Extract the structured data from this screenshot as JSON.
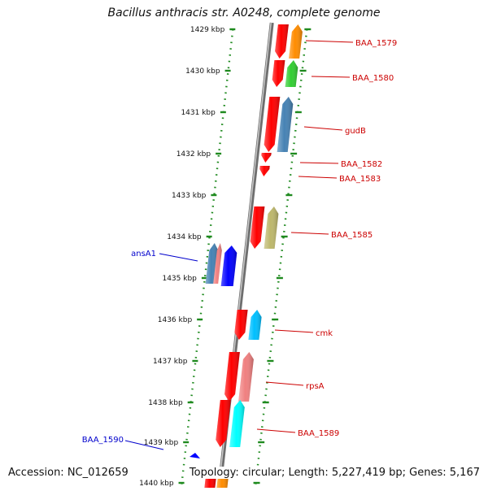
{
  "title": "Bacillus anthracis str. A0248, complete genome",
  "footer": {
    "accession": "Accession: NC_012659",
    "topology": "Topology: circular; Length: 5,227,419 bp; Genes: 5,167"
  },
  "colors": {
    "backbone": "#8a8a8a",
    "ticks": "#1f8a1f",
    "forward_label": "#cc0000",
    "reverse_label": "#0000cc",
    "cds": "#ff0000"
  },
  "scale_ticks": [
    {
      "label": "1429 kbp"
    },
    {
      "label": "1430 kbp"
    },
    {
      "label": "1431 kbp"
    },
    {
      "label": "1432 kbp"
    },
    {
      "label": "1433 kbp"
    },
    {
      "label": "1434 kbp"
    },
    {
      "label": "1435 kbp"
    },
    {
      "label": "1436 kbp"
    },
    {
      "label": "1437 kbp"
    },
    {
      "label": "1438 kbp"
    },
    {
      "label": "1439 kbp"
    },
    {
      "label": "1440 kbp"
    }
  ],
  "genes": [
    {
      "name": "BAA_1579",
      "strand": "forward",
      "color": "#ff8c00"
    },
    {
      "name": "BAA_1580",
      "strand": "forward",
      "color": "#32cd32"
    },
    {
      "name": "gudB",
      "strand": "forward",
      "color": "#4682b4"
    },
    {
      "name": "BAA_1582",
      "strand": "forward",
      "color": "#ff0000"
    },
    {
      "name": "BAA_1583",
      "strand": "forward",
      "color": "#ff0000"
    },
    {
      "name": "BAA_1585",
      "strand": "forward",
      "color": "#bdb76b"
    },
    {
      "name": "ansA1",
      "strand": "reverse",
      "color": "#4682b4"
    },
    {
      "name": "cmk",
      "strand": "forward",
      "color": "#00bfff"
    },
    {
      "name": "rpsA",
      "strand": "forward",
      "color": "#f08080"
    },
    {
      "name": "BAA_1589",
      "strand": "forward",
      "color": "#00ffff"
    },
    {
      "name": "BAA_1590",
      "strand": "reverse",
      "color": "#0000ff"
    }
  ]
}
